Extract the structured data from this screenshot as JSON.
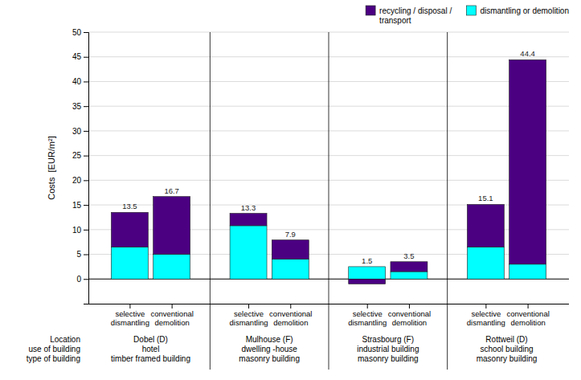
{
  "chart_data": {
    "type": "bar",
    "stacked": true,
    "categories": [
      "selective\ndismantling",
      "conventional\ndemolition",
      "selective\ndismantling",
      "conventional\ndemolition",
      "selective\ndismantling",
      "conventional\ndemolition",
      "selective\ndismantling",
      "conventional\ndemolition"
    ],
    "groups": [
      "Dobel (D)\nhotel\ntimber framed building",
      "Mulhouse (F)\ndwelling -house\nmasonry building",
      "Strasbourg (F)\nindustrial building\nmasonry building",
      "Rottweil (D)\nschool building\nmasonry building"
    ],
    "xlabel": "Location\nuse of building\ntype of building",
    "ylabel": "Costs  [EUR/m²]",
    "series": [
      {
        "name": "dismantling or demolition",
        "color": "#00FFFF",
        "values": [
          6.5,
          5.0,
          10.8,
          4.0,
          2.5,
          1.5,
          6.5,
          3.0
        ]
      },
      {
        "name": "recycling / disposal /\ntransport",
        "color": "#4B0082",
        "values": [
          7.0,
          11.7,
          2.5,
          3.9,
          -1.0,
          2.0,
          8.6,
          41.4
        ]
      }
    ],
    "totals": [
      13.5,
      16.7,
      13.3,
      7.9,
      1.5,
      3.5,
      15.1,
      44.4
    ],
    "data_labels": true,
    "ylim": [
      -5,
      50
    ],
    "yticks": [
      0,
      5,
      10,
      15,
      20,
      25,
      30,
      35,
      40,
      45,
      50
    ],
    "grid": true,
    "legend": "upper right"
  }
}
